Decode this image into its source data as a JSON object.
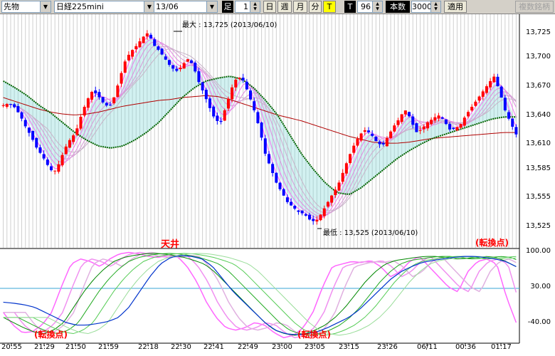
{
  "toolbar": {
    "market_select": "先物",
    "product_select": "日経225mini",
    "contract_select": "13/06",
    "ashi_label": "足",
    "minute_value": "1",
    "day_button": "日",
    "week_button": "週",
    "month_button": "月",
    "minute_button": "分",
    "t_button": "T",
    "t2_label": "T",
    "count_value": "96",
    "honsu_label": "本数",
    "bars_value": "3000",
    "apply_button": "適用",
    "multi_button": "複数銘柄"
  },
  "price_axis": [
    "13,725",
    "13,700",
    "13,670",
    "13,640",
    "13,610",
    "13,585",
    "13,555",
    "13,525"
  ],
  "osc_axis": [
    "100.00",
    "30.00",
    "-40.00"
  ],
  "time_axis": [
    "20:55",
    "21:29",
    "21:50",
    "21:59",
    "22:18",
    "22:30",
    "22:41",
    "22:49",
    "23:00",
    "23:05",
    "23:15",
    "23:26",
    "06/11",
    "00:36",
    "01:17"
  ],
  "annotations": {
    "max_label": "最大 : 13,725 (2013/06/10)",
    "min_label": "最低 : 13,525 (2013/06/10)",
    "tenjo": "天井",
    "turn1": "(転換点)",
    "turn2": "(転換点)",
    "turn3": "(転換点)"
  },
  "colors": {
    "up": "#ff0000",
    "down": "#0000ff",
    "ma_green": "#006400",
    "ma_red": "#b00000",
    "ribbon": "#e070e0",
    "cloud": "#7fd6d6"
  },
  "chart_data": {
    "type": "candlestick",
    "y_range": [
      13515,
      13735
    ],
    "osc_range": [
      -75,
      100
    ],
    "price_path": [
      13650,
      13652,
      13648,
      13640,
      13628,
      13618,
      13606,
      13598,
      13588,
      13580,
      13590,
      13605,
      13615,
      13622,
      13640,
      13655,
      13665,
      13660,
      13652,
      13648,
      13660,
      13680,
      13698,
      13706,
      13712,
      13720,
      13725,
      13712,
      13706,
      13698,
      13690,
      13685,
      13690,
      13698,
      13692,
      13675,
      13662,
      13648,
      13635,
      13632,
      13650,
      13668,
      13680,
      13676,
      13662,
      13645,
      13625,
      13600,
      13585,
      13570,
      13560,
      13550,
      13545,
      13540,
      13538,
      13532,
      13530,
      13538,
      13548,
      13558,
      13567,
      13582,
      13597,
      13610,
      13620,
      13625,
      13620,
      13612,
      13608,
      13618,
      13628,
      13636,
      13646,
      13637,
      13622,
      13625,
      13632,
      13636,
      13640,
      13635,
      13625,
      13626,
      13630,
      13640,
      13648,
      13656,
      13664,
      13672,
      13680,
      13665,
      13645,
      13632,
      13620
    ],
    "ma_green": [
      13675,
      13668,
      13660,
      13650,
      13642,
      13632,
      13622,
      13614,
      13608,
      13606,
      13608,
      13614,
      13622,
      13632,
      13645,
      13658,
      13668,
      13675,
      13678,
      13680,
      13677,
      13668,
      13655,
      13640,
      13620,
      13600,
      13584,
      13570,
      13560,
      13558,
      13565,
      13575,
      13585,
      13595,
      13603,
      13610,
      13616,
      13620,
      13624,
      13628,
      13632,
      13636,
      13638,
      13638
    ],
    "ma_red": [
      13658,
      13654,
      13650,
      13646,
      13643,
      13641,
      13640,
      13641,
      13643,
      13646,
      13649,
      13651,
      13653,
      13655,
      13656,
      13658,
      13659,
      13660,
      13659,
      13656,
      13652,
      13648,
      13644,
      13640,
      13637,
      13634,
      13630,
      13626,
      13622,
      13618,
      13615,
      13612,
      13611,
      13611,
      13612,
      13614,
      13616,
      13617,
      13618,
      13619,
      13620,
      13621,
      13622,
      13622
    ],
    "osc_pink": [
      -20,
      -45,
      -60,
      -58,
      -45,
      -20,
      30,
      75,
      85,
      80,
      70,
      85,
      95,
      98,
      95,
      90,
      88,
      92,
      90,
      70,
      40,
      0,
      -30,
      -50,
      -55,
      -50,
      -40,
      -45,
      -60,
      -70,
      -65,
      -50,
      -20,
      30,
      70,
      75,
      80,
      78,
      82,
      70,
      50,
      60,
      80,
      90,
      70,
      50,
      30,
      20,
      60,
      80,
      85,
      75,
      10,
      -40
    ],
    "osc_green": [
      -30,
      -40,
      -50,
      -58,
      -62,
      -55,
      -40,
      -10,
      20,
      45,
      65,
      80,
      88,
      92,
      95,
      96,
      95,
      92,
      88,
      82,
      75,
      60,
      40,
      20,
      0,
      -20,
      -40,
      -55,
      -62,
      -65,
      -62,
      -55,
      -45,
      -30,
      -10,
      15,
      40,
      60,
      75,
      82,
      85,
      88,
      90,
      90,
      88,
      85,
      86,
      88,
      90,
      88,
      80,
      70
    ],
    "osc_blue": [
      0,
      -2,
      -5,
      -10,
      -20,
      -30,
      -40,
      -45,
      -45,
      -42,
      -38,
      -30,
      -10,
      20,
      50,
      75,
      88,
      92,
      90,
      85,
      70,
      45,
      20,
      0,
      -20,
      -40,
      -55,
      -62,
      -64,
      -62,
      -58,
      -50,
      -40,
      -30,
      -15,
      5,
      25,
      45,
      60,
      70,
      78,
      82,
      85,
      88,
      90,
      90,
      88,
      85,
      80,
      70
    ]
  }
}
